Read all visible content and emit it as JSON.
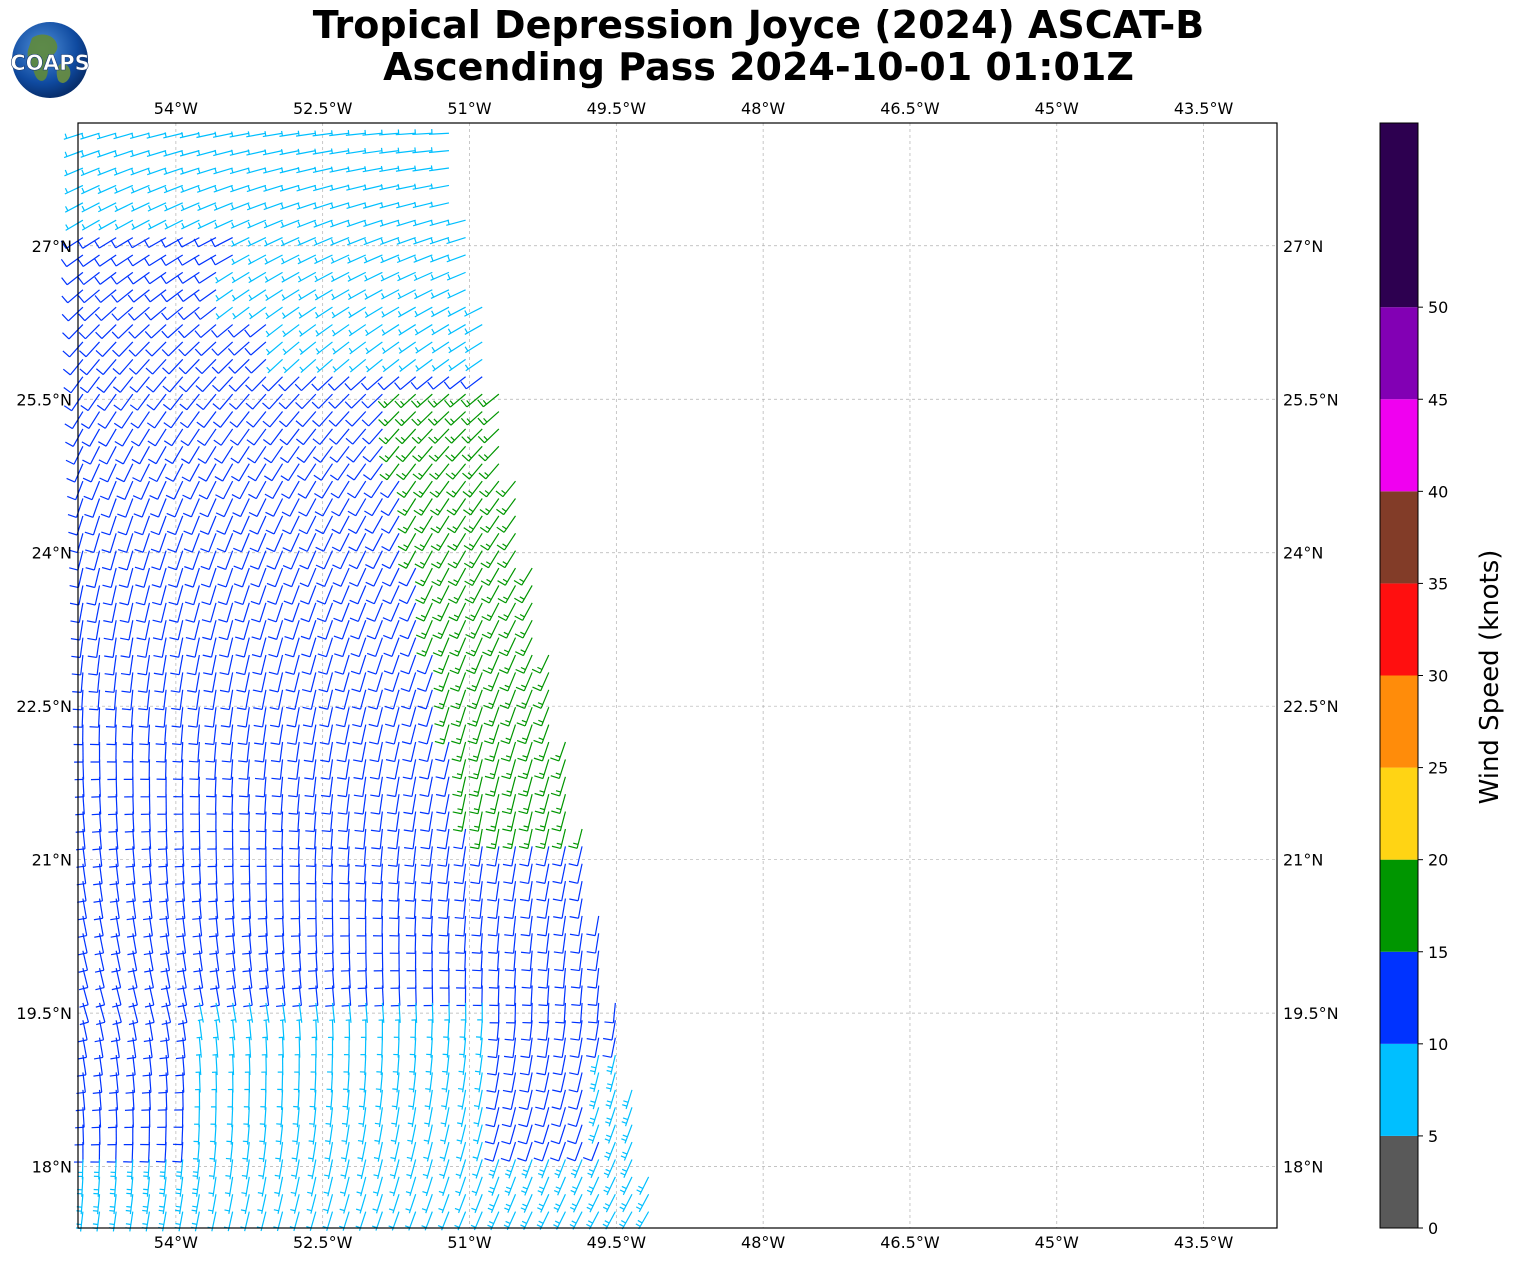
{
  "title": {
    "line1": "Tropical Depression Joyce (2024) ASCAT-B",
    "line2": "Ascending Pass 2024-10-01 01:01Z"
  },
  "logo": {
    "text": "COAPS",
    "icon": "globe-icon"
  },
  "map": {
    "lon_range": [
      -55,
      -42.75
    ],
    "lat_range": [
      17.4,
      28.2
    ],
    "lon_ticks": [
      "54°W",
      "52.5°W",
      "51°W",
      "49.5°W",
      "48°W",
      "46.5°W",
      "45°W",
      "43.5°W"
    ],
    "lon_tick_values": [
      -54,
      -52.5,
      -51,
      -49.5,
      -48,
      -46.5,
      -45,
      -43.5
    ],
    "lat_ticks": [
      "27°N",
      "25.5°N",
      "24°N",
      "22.5°N",
      "21°N",
      "19.5°N",
      "18°N"
    ],
    "lat_tick_values": [
      27,
      25.5,
      24,
      22.5,
      21,
      19.5,
      18
    ],
    "grid": true
  },
  "colorbar": {
    "label": "Wind Speed (knots)",
    "tick_labels": [
      "0",
      "5",
      "10",
      "15",
      "20",
      "25",
      "30",
      "35",
      "40",
      "45",
      "50"
    ],
    "bins": [
      {
        "min": 0,
        "max": 5,
        "color": "#595959"
      },
      {
        "min": 5,
        "max": 10,
        "color": "#00bfff"
      },
      {
        "min": 10,
        "max": 15,
        "color": "#0033ff"
      },
      {
        "min": 15,
        "max": 20,
        "color": "#009600"
      },
      {
        "min": 20,
        "max": 25,
        "color": "#ffd414"
      },
      {
        "min": 25,
        "max": 30,
        "color": "#ff8c0a"
      },
      {
        "min": 30,
        "max": 35,
        "color": "#ff0f0f"
      },
      {
        "min": 35,
        "max": 40,
        "color": "#823c28"
      },
      {
        "min": 40,
        "max": 45,
        "color": "#f000f0"
      },
      {
        "min": 45,
        "max": 50,
        "color": "#8200b4"
      },
      {
        "min": 50,
        "max": 60,
        "color": "#2d0050"
      }
    ]
  },
  "swath": {
    "coverage": "western edge of map to approximately 50.2°W, sloping eastward with decreasing latitude",
    "speed_regions": [
      {
        "range_knots": "5-10",
        "location": "northwest corner and southern portion of swath"
      },
      {
        "range_knots": "10-15",
        "location": "most of swath interior"
      },
      {
        "range_knots": "15-20",
        "location": "narrow band near eastern edge, 21.2°N to 25.7°N"
      }
    ]
  }
}
